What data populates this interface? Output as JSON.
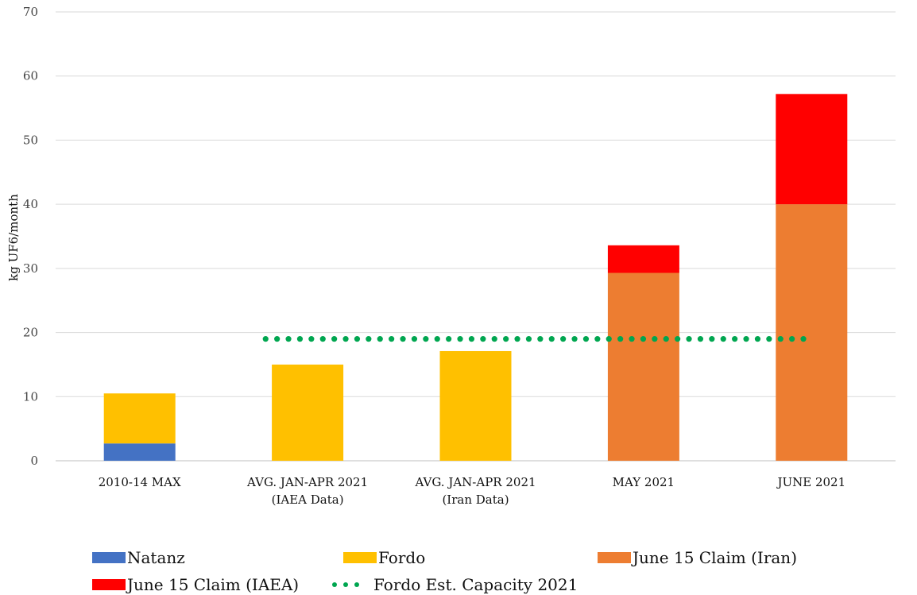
{
  "chart_data": {
    "type": "bar",
    "stacked": true,
    "title": "",
    "xlabel": "",
    "ylabel": "kg UF6/month",
    "ylim": [
      0,
      70
    ],
    "yticks": [
      0,
      10,
      20,
      30,
      40,
      50,
      60,
      70
    ],
    "grid": true,
    "legend_position": "bottom",
    "categories": [
      [
        "2010-14 MAX"
      ],
      [
        "AVG. JAN-APR 2021",
        "(IAEA Data)"
      ],
      [
        "AVG. JAN-APR 2021",
        "(Iran Data)"
      ],
      [
        "MAY 2021"
      ],
      [
        "JUNE 2021"
      ]
    ],
    "series": [
      {
        "name": "Natanz",
        "color": "#4472C4",
        "values": [
          2.7,
          0,
          0,
          0,
          0
        ]
      },
      {
        "name": "Fordo",
        "color": "#FFC000",
        "values": [
          7.8,
          15,
          17.1,
          0,
          0
        ]
      },
      {
        "name": "June 15 Claim (Iran)",
        "color": "#ED7D31",
        "values": [
          0,
          0,
          0,
          29.3,
          40
        ]
      },
      {
        "name": "June 15 Claim (IAEA)",
        "color": "#FF0000",
        "values": [
          0,
          0,
          0,
          4.3,
          17.2
        ]
      }
    ],
    "reference_line": {
      "name": "Fordo Est. Capacity 2021",
      "color": "#00A650",
      "style": "dotted",
      "value": 19,
      "from_category": 1,
      "to_category": 4
    }
  },
  "legend": [
    {
      "label": "Natanz",
      "kind": "swatch",
      "color": "#4472C4"
    },
    {
      "label": "Fordo",
      "kind": "swatch",
      "color": "#FFC000"
    },
    {
      "label": "June 15 Claim (Iran)",
      "kind": "swatch",
      "color": "#ED7D31"
    },
    {
      "label": "June 15 Claim (IAEA)",
      "kind": "swatch",
      "color": "#FF0000"
    },
    {
      "label": "Fordo Est. Capacity 2021",
      "kind": "dots",
      "color": "#00A650"
    }
  ]
}
